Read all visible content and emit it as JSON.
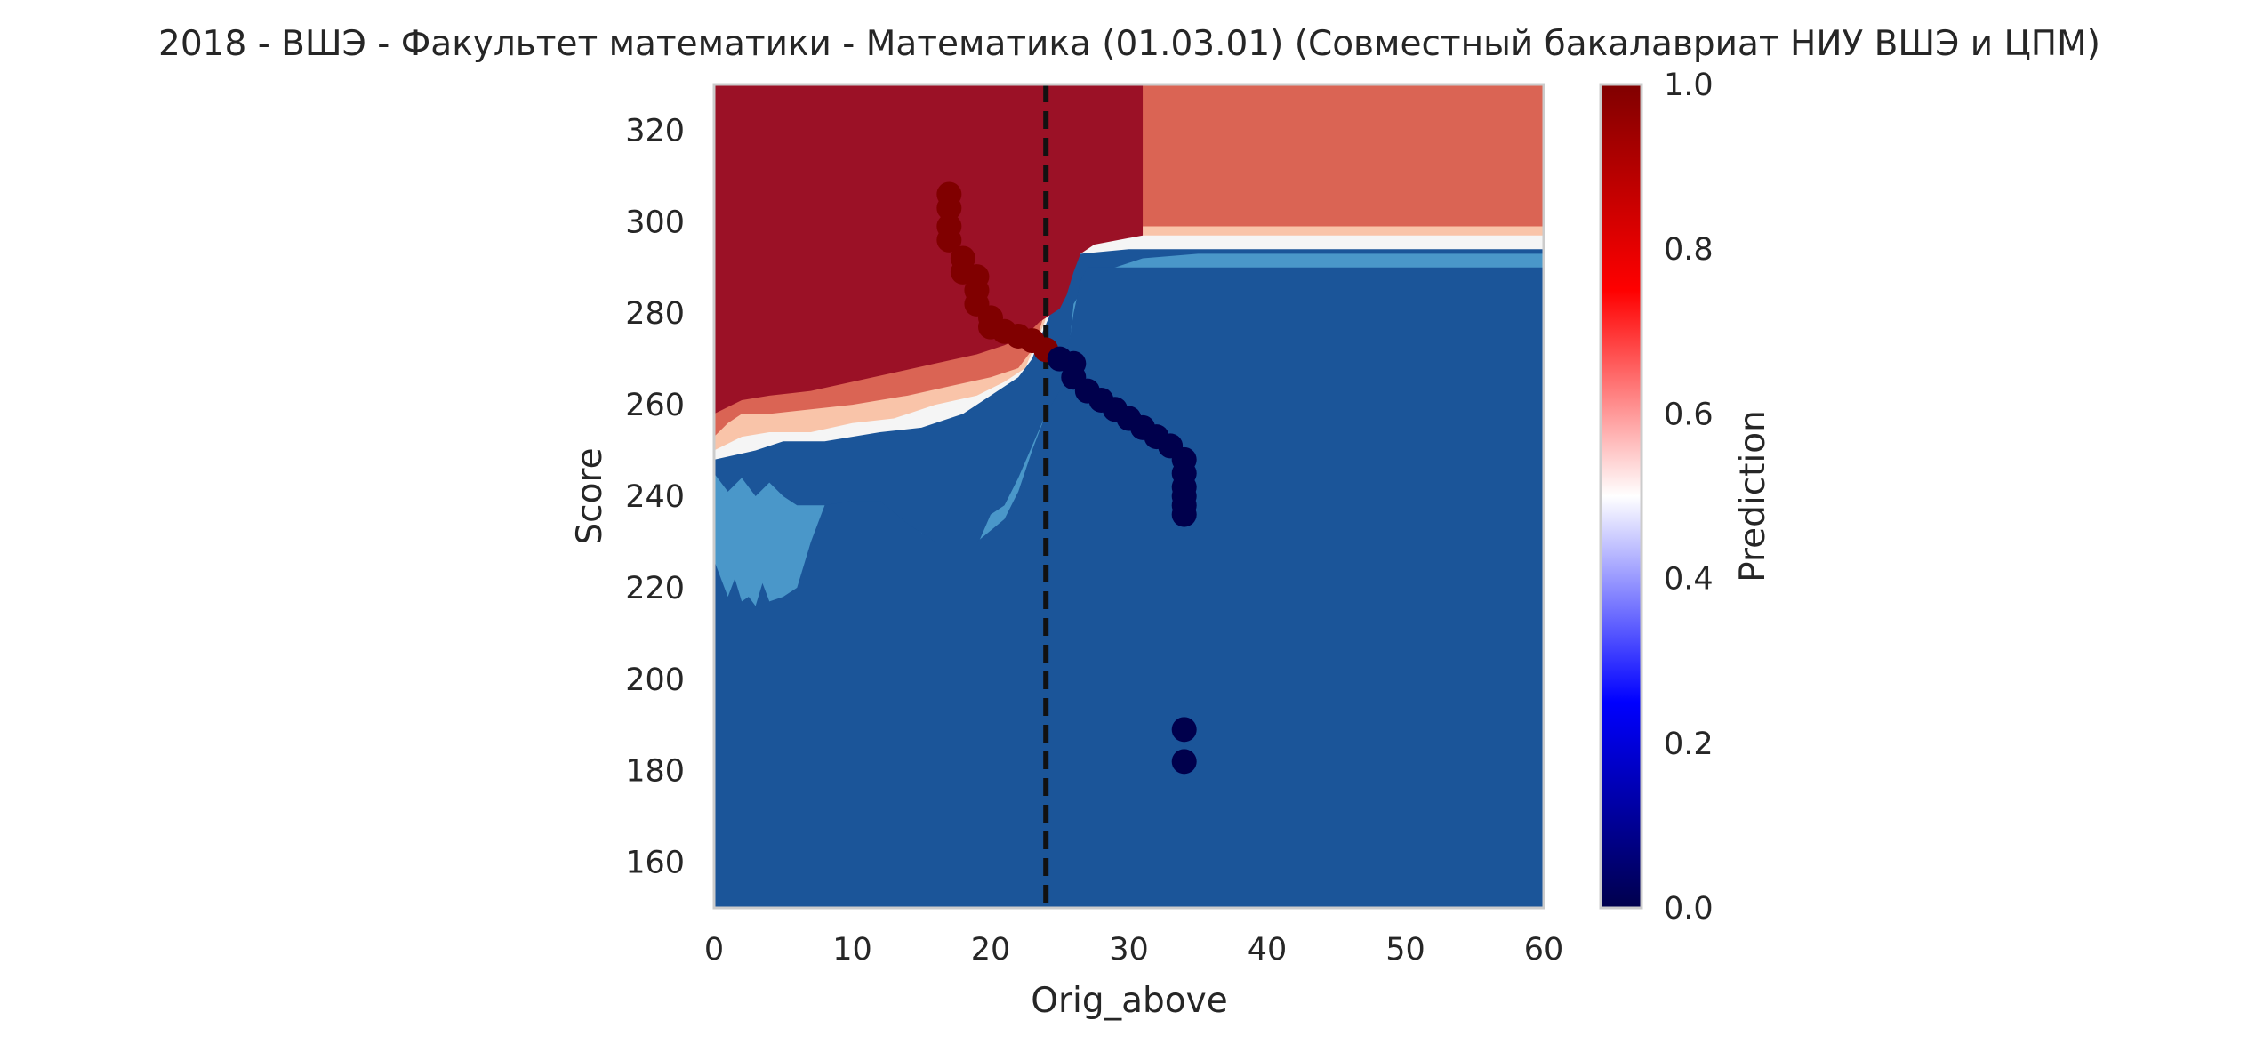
{
  "chart_data": {
    "type": "heatmap",
    "title": "2018 - ВШЭ - Факультет математики - Математика (01.03.01) (Совместный бакалавриат НИУ ВШЭ и ЦПМ)",
    "xlabel": "Orig_above",
    "ylabel": "Score",
    "xlim": [
      0,
      60
    ],
    "ylim": [
      150,
      330
    ],
    "x_ticks": [
      0,
      10,
      20,
      30,
      40,
      50,
      60
    ],
    "y_ticks": [
      160,
      180,
      200,
      220,
      240,
      260,
      280,
      300,
      320
    ],
    "grid": false,
    "colorbar": {
      "label": "Prediction",
      "range": [
        0,
        1
      ],
      "ticks": [
        "0.0",
        "0.2",
        "0.4",
        "0.6",
        "0.8",
        "1.0"
      ],
      "colormap": "seismic",
      "colors": [
        "#00004c",
        "#0000ff",
        "#ffffff",
        "#ff0000",
        "#800000"
      ]
    },
    "contour_fill": {
      "levels": [
        {
          "range": [
            0.0,
            0.125
          ],
          "color": "#1b5599"
        },
        {
          "range": [
            0.125,
            0.25
          ],
          "color": "#4a97c9"
        },
        {
          "range": [
            0.25,
            0.375
          ],
          "color": "#a9cfe5"
        },
        {
          "range": [
            0.375,
            0.5
          ],
          "color": "#f5f5f5"
        },
        {
          "range": [
            0.5,
            0.625
          ],
          "color": "#f9c4a9"
        },
        {
          "range": [
            0.625,
            0.875
          ],
          "color": "#da6454"
        },
        {
          "range": [
            0.875,
            1.0
          ],
          "color": "#9b1126"
        }
      ],
      "boundary_lower_left": [
        [
          0,
          258
        ],
        [
          5,
          262
        ],
        [
          10,
          264
        ],
        [
          15,
          266
        ],
        [
          18,
          268
        ],
        [
          20,
          270
        ],
        [
          23,
          272
        ],
        [
          25,
          280
        ],
        [
          27,
          290
        ],
        [
          30,
          296
        ],
        [
          35,
          298
        ],
        [
          45,
          298
        ],
        [
          60,
          298
        ]
      ]
    },
    "threshold_line": {
      "x": 24,
      "style": "dashed",
      "color": "#111111"
    },
    "points_admitted": {
      "prediction": 1,
      "color": "#800000",
      "x": [
        17,
        17,
        17,
        17,
        18,
        18,
        19,
        19,
        19,
        20,
        20,
        21,
        22,
        23,
        24
      ],
      "y": [
        306,
        303,
        299,
        296,
        292,
        289,
        288,
        285,
        282,
        279,
        277,
        276,
        275,
        274,
        272
      ]
    },
    "points_rejected": {
      "prediction": 0,
      "color": "#00004c",
      "x": [
        25,
        26,
        26,
        27,
        28,
        29,
        30,
        31,
        32,
        33,
        34,
        34,
        34,
        34,
        34,
        34,
        34,
        34
      ],
      "y": [
        270,
        269,
        266,
        263,
        261,
        259,
        257,
        255,
        253,
        251,
        248,
        245,
        242,
        240,
        238,
        236,
        189,
        182
      ]
    }
  }
}
